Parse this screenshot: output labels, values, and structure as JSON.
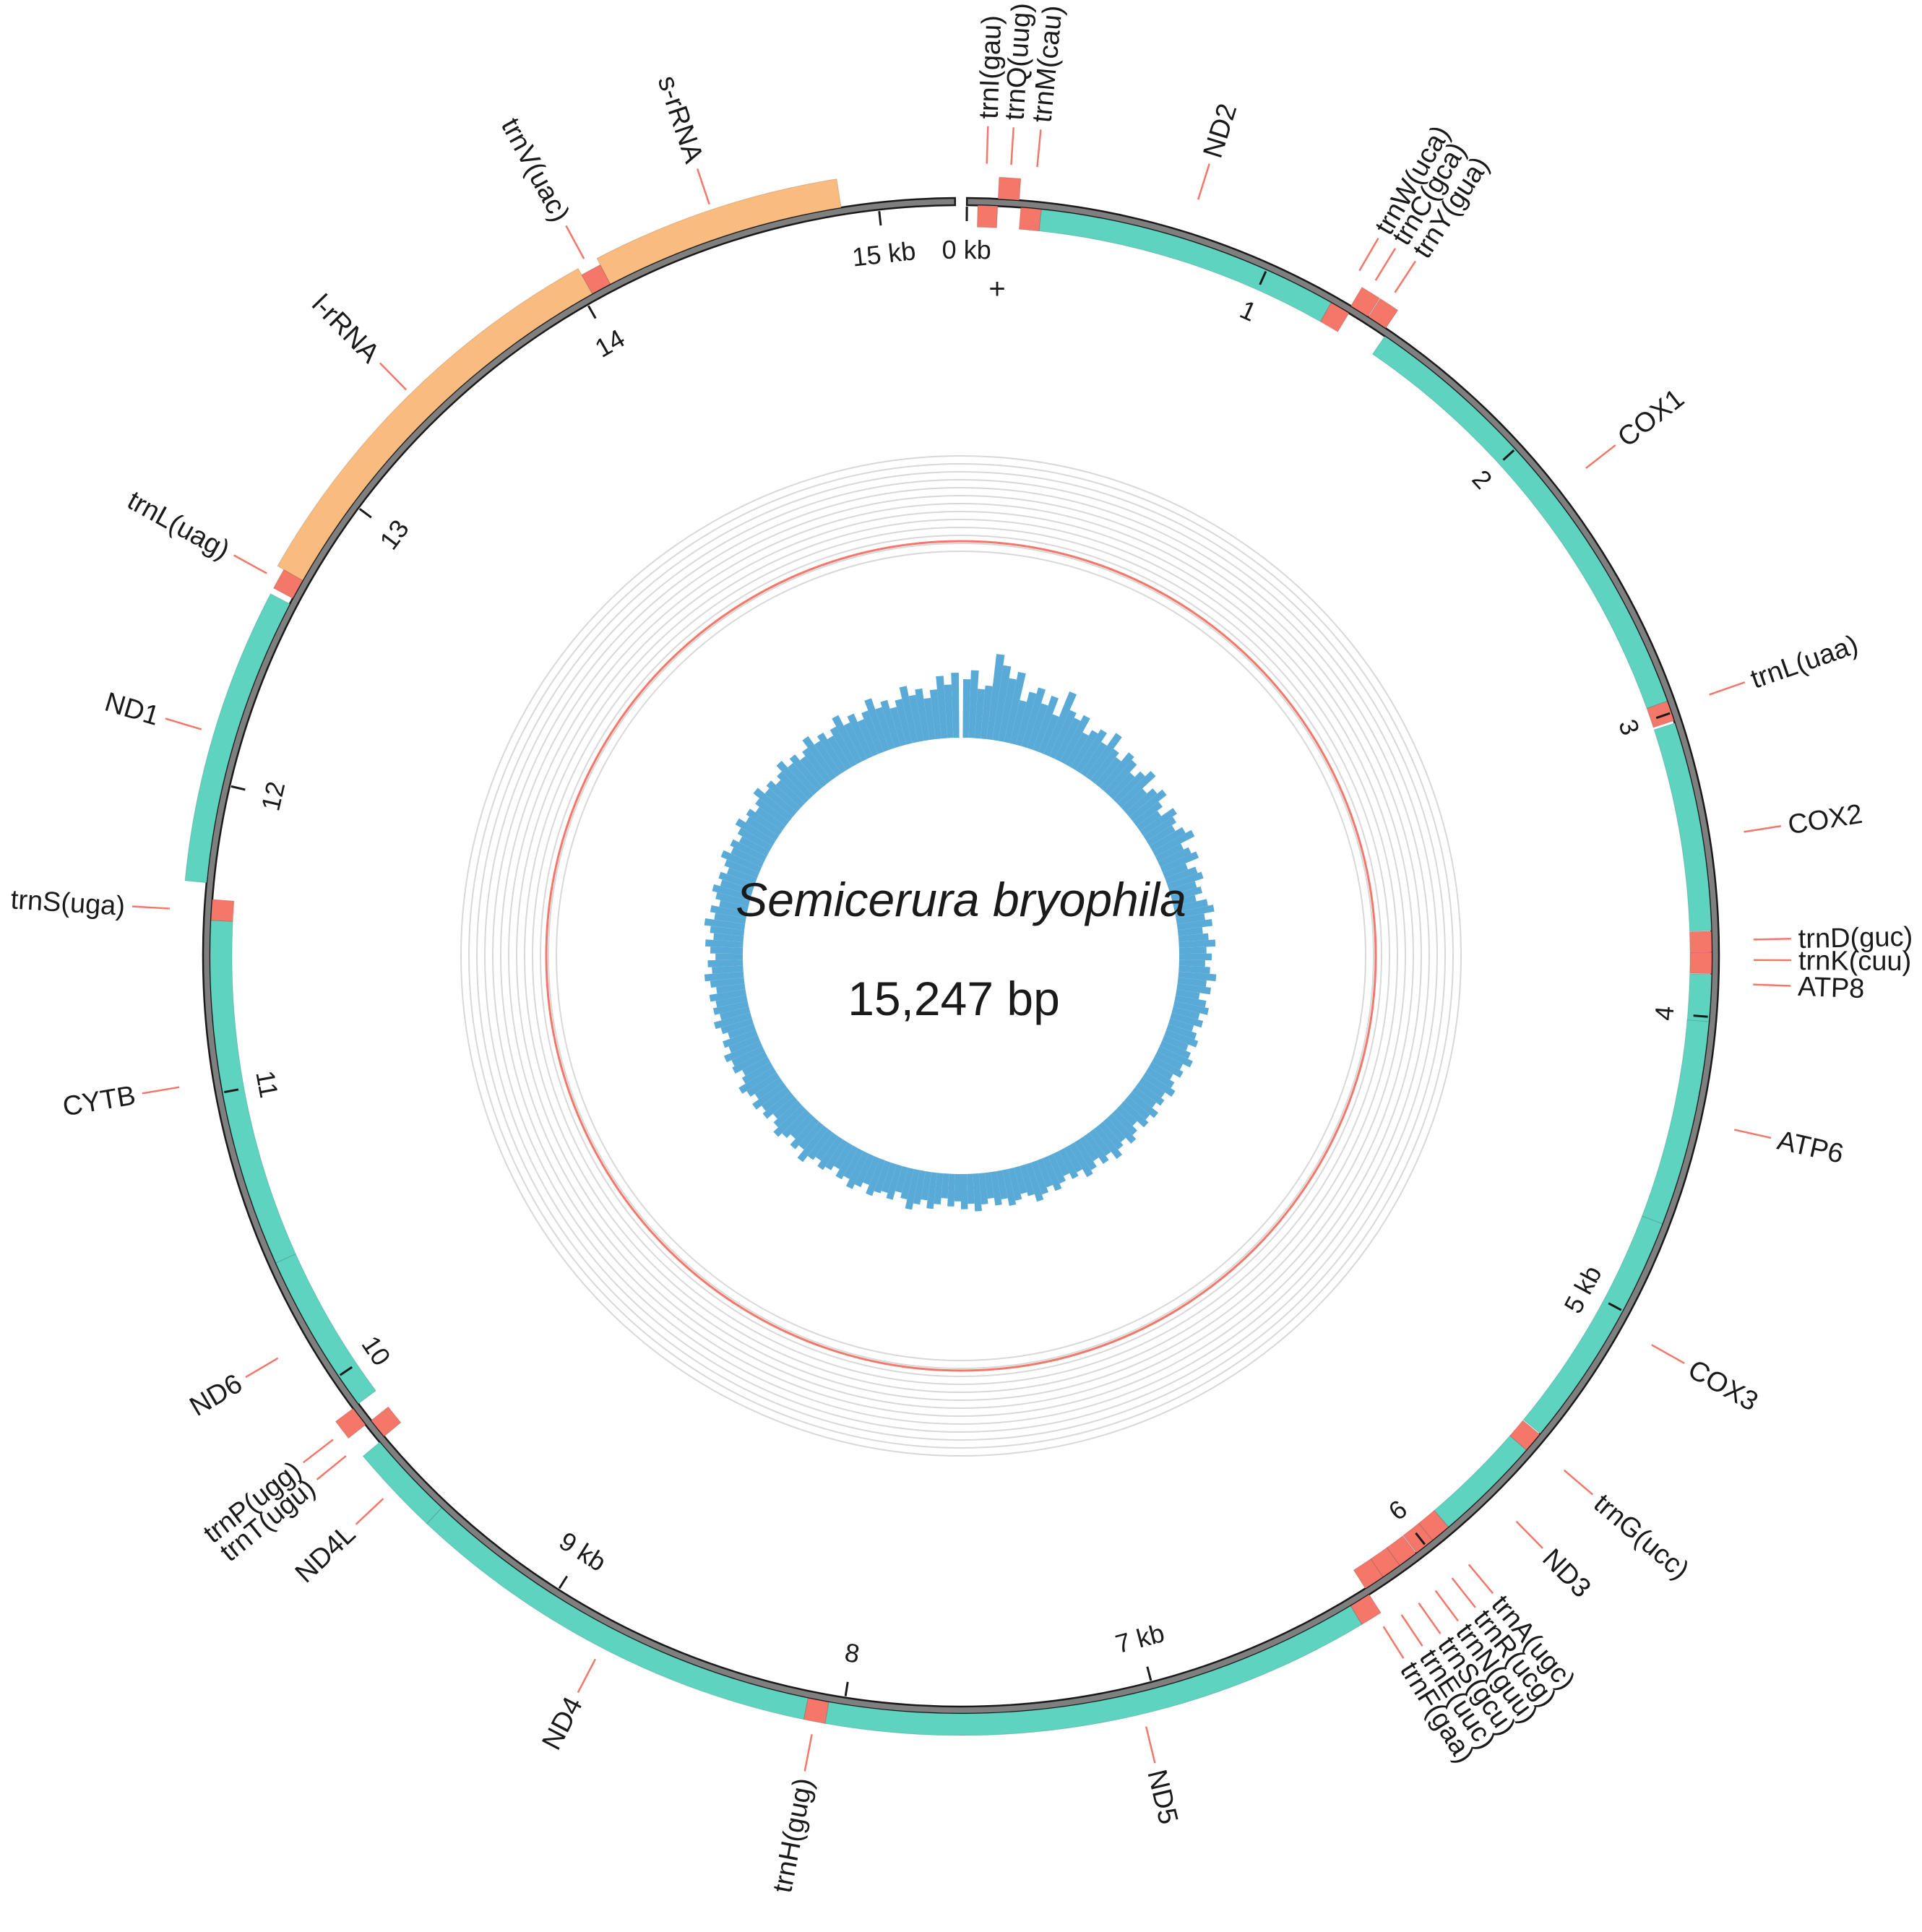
{
  "title": {
    "organism": "Semicerura bryophila",
    "size_label": "15,247 bp"
  },
  "genome_length": 15247,
  "strand_label": "+",
  "colors": {
    "backbone": "#7f7f7f",
    "backbone_edge": "#1a1a1a",
    "protein_coding": "#5dd3c0",
    "trna": "#f4776a",
    "rrna": "#f9bb7e",
    "label_line": "#f4776a",
    "gc_bar": "#5aaad8",
    "gc_threshold": "#f4776a",
    "gc_grid": "#d8d8d8"
  },
  "ticks": [
    {
      "pos": 0,
      "label": "0 kb"
    },
    {
      "pos": 1000,
      "label": "1"
    },
    {
      "pos": 2000,
      "label": "2"
    },
    {
      "pos": 3000,
      "label": "3"
    },
    {
      "pos": 4000,
      "label": "4"
    },
    {
      "pos": 5000,
      "label": "5 kb"
    },
    {
      "pos": 6000,
      "label": "6"
    },
    {
      "pos": 7000,
      "label": "7 kb"
    },
    {
      "pos": 8000,
      "label": "8"
    },
    {
      "pos": 9000,
      "label": "9 kb"
    },
    {
      "pos": 10000,
      "label": "10"
    },
    {
      "pos": 11000,
      "label": "11"
    },
    {
      "pos": 12000,
      "label": "12"
    },
    {
      "pos": 13000,
      "label": "13"
    },
    {
      "pos": 14000,
      "label": "14"
    },
    {
      "pos": 15000,
      "label": "15 kb"
    }
  ],
  "features": [
    {
      "name": "trnI(gau)",
      "type": "tRNA",
      "strand": "+",
      "start": 35,
      "end": 100
    },
    {
      "name": "trnQ(uug)",
      "type": "tRNA",
      "strand": "-",
      "start": 100,
      "end": 168
    },
    {
      "name": "trnM(cau)",
      "type": "tRNA",
      "strand": "+",
      "start": 175,
      "end": 242
    },
    {
      "name": "ND2",
      "type": "CDS",
      "strand": "+",
      "start": 242,
      "end": 1235
    },
    {
      "name": "trnW(uca)",
      "type": "tRNA",
      "strand": "+",
      "start": 1235,
      "end": 1302
    },
    {
      "name": "trnC(gca)",
      "type": "tRNA",
      "strand": "-",
      "start": 1295,
      "end": 1360
    },
    {
      "name": "trnY(gua)",
      "type": "tRNA",
      "strand": "-",
      "start": 1362,
      "end": 1428
    },
    {
      "name": "COX1",
      "type": "CDS",
      "strand": "+",
      "start": 1440,
      "end": 2960
    },
    {
      "name": "trnL(uaa)",
      "type": "tRNA",
      "strand": "+",
      "start": 2960,
      "end": 3027
    },
    {
      "name": "COX2",
      "type": "CDS",
      "strand": "+",
      "start": 3035,
      "end": 3720
    },
    {
      "name": "trnD(guc)",
      "type": "tRNA",
      "strand": "+",
      "start": 3722,
      "end": 3789
    },
    {
      "name": "trnK(cuu)",
      "type": "tRNA",
      "strand": "+",
      "start": 3790,
      "end": 3860
    },
    {
      "name": "ATP8",
      "type": "CDS",
      "strand": "+",
      "start": 3862,
      "end": 4022
    },
    {
      "name": "ATP6",
      "type": "CDS",
      "strand": "+",
      "start": 4016,
      "end": 4690
    },
    {
      "name": "COX3",
      "type": "CDS",
      "strand": "+",
      "start": 4690,
      "end": 5480
    },
    {
      "name": "trnG(ucc)",
      "type": "tRNA",
      "strand": "+",
      "start": 5483,
      "end": 5550
    },
    {
      "name": "ND3",
      "type": "CDS",
      "strand": "+",
      "start": 5550,
      "end": 5905
    },
    {
      "name": "trnA(ugc)",
      "type": "tRNA",
      "strand": "+",
      "start": 5905,
      "end": 5972
    },
    {
      "name": "trnR(ucg)",
      "type": "tRNA",
      "strand": "+",
      "start": 5972,
      "end": 6038
    },
    {
      "name": "trnN(guu)",
      "type": "tRNA",
      "strand": "+",
      "start": 6040,
      "end": 6106
    },
    {
      "name": "trnS(gcu)",
      "type": "tRNA",
      "strand": "+",
      "start": 6106,
      "end": 6172
    },
    {
      "name": "trnE(uuc)",
      "type": "tRNA",
      "strand": "+",
      "start": 6172,
      "end": 6240
    },
    {
      "name": "trnF(gaa)",
      "type": "tRNA",
      "strand": "-",
      "start": 6240,
      "end": 6310
    },
    {
      "name": "ND5",
      "type": "CDS",
      "strand": "-",
      "start": 6310,
      "end": 8050
    },
    {
      "name": "trnH(gug)",
      "type": "tRNA",
      "strand": "-",
      "start": 8050,
      "end": 8118
    },
    {
      "name": "ND4",
      "type": "CDS",
      "strand": "-",
      "start": 8118,
      "end": 9460
    },
    {
      "name": "ND4L",
      "type": "CDS",
      "strand": "-",
      "start": 9460,
      "end": 9750
    },
    {
      "name": "trnT(ugu)",
      "type": "tRNA",
      "strand": "+",
      "start": 9755,
      "end": 9822
    },
    {
      "name": "trnP(ugg)",
      "type": "tRNA",
      "strand": "-",
      "start": 9822,
      "end": 9888
    },
    {
      "name": "ND6",
      "type": "CDS",
      "strand": "+",
      "start": 9890,
      "end": 10420
    },
    {
      "name": "CYTB",
      "type": "CDS",
      "strand": "+",
      "start": 10420,
      "end": 11560
    },
    {
      "name": "trnS(uga)",
      "type": "tRNA",
      "strand": "+",
      "start": 11560,
      "end": 11628
    },
    {
      "name": "ND1",
      "type": "CDS",
      "strand": "-",
      "start": 11680,
      "end": 12620
    },
    {
      "name": "trnL(uag)",
      "type": "tRNA",
      "strand": "-",
      "start": 12640,
      "end": 12706
    },
    {
      "name": "l-rRNA",
      "type": "rRNA",
      "strand": "-",
      "start": 12706,
      "end": 14030
    },
    {
      "name": "trnV(uac)",
      "type": "tRNA",
      "strand": "-",
      "start": 14030,
      "end": 14096
    },
    {
      "name": "s-rRNA",
      "type": "rRNA",
      "strand": "-",
      "start": 14096,
      "end": 14880
    }
  ],
  "labels": [
    {
      "text": "trnI(gau)",
      "pos": 60
    },
    {
      "text": "trnQ(uug)",
      "pos": 135
    },
    {
      "text": "trnM(cau)",
      "pos": 215
    },
    {
      "text": "ND2",
      "pos": 720
    },
    {
      "text": "trnW(uca)",
      "pos": 1262
    },
    {
      "text": "trnC(gca)",
      "pos": 1320
    },
    {
      "text": "trnY(gua)",
      "pos": 1390
    },
    {
      "text": "COX1",
      "pos": 2190
    },
    {
      "text": "trnL(uaa)",
      "pos": 2985
    },
    {
      "text": "COX2",
      "pos": 3420
    },
    {
      "text": "trnD(guc)",
      "pos": 3752
    },
    {
      "text": "trnK(cuu)",
      "pos": 3815
    },
    {
      "text": "ATP8",
      "pos": 3890
    },
    {
      "text": "ATP6",
      "pos": 4340
    },
    {
      "text": "COX3",
      "pos": 5050
    },
    {
      "text": "trnG(ucc)",
      "pos": 5520
    },
    {
      "text": "ND3",
      "pos": 5735
    },
    {
      "text": "trnA(ugc)",
      "pos": 5932
    },
    {
      "text": "trnR(ucg)",
      "pos": 5998
    },
    {
      "text": "trnN(guu)",
      "pos": 6062
    },
    {
      "text": "trnS(gcu)",
      "pos": 6126
    },
    {
      "text": "trnE(uuc)",
      "pos": 6190
    },
    {
      "text": "trnF(gaa)",
      "pos": 6256
    },
    {
      "text": "ND5",
      "pos": 7050
    },
    {
      "text": "trnH(gug)",
      "pos": 8084
    },
    {
      "text": "ND4",
      "pos": 8790
    },
    {
      "text": "ND4L",
      "pos": 9610
    },
    {
      "text": "trnT(ugu)",
      "pos": 9784
    },
    {
      "text": "trnP(ugg)",
      "pos": 9848
    },
    {
      "text": "ND6",
      "pos": 10150
    },
    {
      "text": "CYTB",
      "pos": 11040
    },
    {
      "text": "trnS(uga)",
      "pos": 11590
    },
    {
      "text": "ND1",
      "pos": 12150
    },
    {
      "text": "trnL(uag)",
      "pos": 12670
    },
    {
      "text": "l-rRNA",
      "pos": 13380
    },
    {
      "text": "trnV(uac)",
      "pos": 14060
    },
    {
      "text": "s-rRNA",
      "pos": 14480
    }
  ],
  "gc_skew_values": [
    0.45,
    0.52,
    0.38,
    0.41,
    0.66,
    0.58,
    0.49,
    0.55,
    0.34,
    0.42,
    0.47,
    0.36,
    0.44,
    0.31,
    0.52,
    0.39,
    0.35,
    0.4,
    0.28,
    0.33,
    0.37,
    0.29,
    0.41,
    0.3,
    0.26,
    0.35,
    0.32,
    0.24,
    0.3,
    0.36,
    0.22,
    0.28,
    0.33,
    0.25,
    0.2,
    0.31,
    0.27,
    0.23,
    0.29,
    0.34,
    0.22,
    0.26,
    0.3,
    0.19,
    0.25,
    0.28,
    0.21,
    0.24,
    0.18,
    0.26,
    0.3,
    0.22,
    0.27,
    0.19,
    0.23,
    0.28,
    0.21,
    0.25,
    0.2,
    0.24,
    0.29,
    0.22,
    0.26,
    0.18,
    0.24,
    0.27,
    0.21,
    0.25,
    0.19,
    0.23,
    0.26,
    0.2,
    0.24,
    0.28,
    0.22,
    0.25,
    0.19,
    0.23,
    0.27,
    0.21,
    0.24,
    0.2,
    0.26,
    0.22,
    0.25,
    0.18,
    0.23,
    0.27,
    0.21,
    0.24,
    0.29,
    0.22,
    0.26,
    0.2,
    0.25,
    0.28,
    0.21,
    0.24,
    0.19,
    0.23,
    0.27,
    0.22,
    0.26,
    0.3,
    0.24,
    0.21,
    0.25,
    0.28,
    0.22,
    0.26,
    0.2,
    0.24,
    0.29,
    0.23,
    0.27,
    0.21,
    0.25,
    0.19,
    0.24,
    0.28,
    0.22,
    0.26,
    0.31,
    0.24,
    0.2,
    0.27,
    0.23,
    0.25,
    0.29,
    0.22,
    0.26,
    0.3,
    0.24,
    0.27,
    0.21,
    0.25,
    0.28,
    0.23,
    0.26,
    0.32,
    0.24,
    0.28,
    0.22,
    0.26,
    0.3,
    0.25,
    0.21,
    0.27,
    0.24,
    0.29,
    0.23,
    0.27,
    0.31,
    0.25,
    0.22,
    0.28,
    0.26,
    0.3,
    0.24,
    0.27,
    0.21,
    0.25,
    0.29,
    0.23,
    0.27,
    0.24,
    0.28,
    0.22,
    0.26,
    0.3,
    0.24,
    0.27,
    0.21,
    0.25,
    0.29,
    0.23,
    0.26,
    0.31,
    0.24,
    0.28,
    0.22,
    0.26,
    0.3,
    0.25,
    0.28,
    0.23,
    0.27,
    0.32,
    0.26,
    0.29,
    0.24,
    0.28,
    0.33,
    0.27,
    0.3,
    0.25,
    0.29,
    0.35,
    0.28,
    0.31,
    0.26,
    0.3,
    0.36,
    0.29,
    0.33,
    0.27,
    0.31,
    0.38,
    0.3,
    0.34,
    0.28,
    0.33,
    0.4,
    0.31,
    0.36,
    0.29,
    0.34,
    0.42,
    0.33,
    0.37,
    0.3,
    0.35,
    0.44,
    0.36,
    0.4,
    0.32,
    0.38,
    0.48,
    0.41,
    0.5
  ]
}
